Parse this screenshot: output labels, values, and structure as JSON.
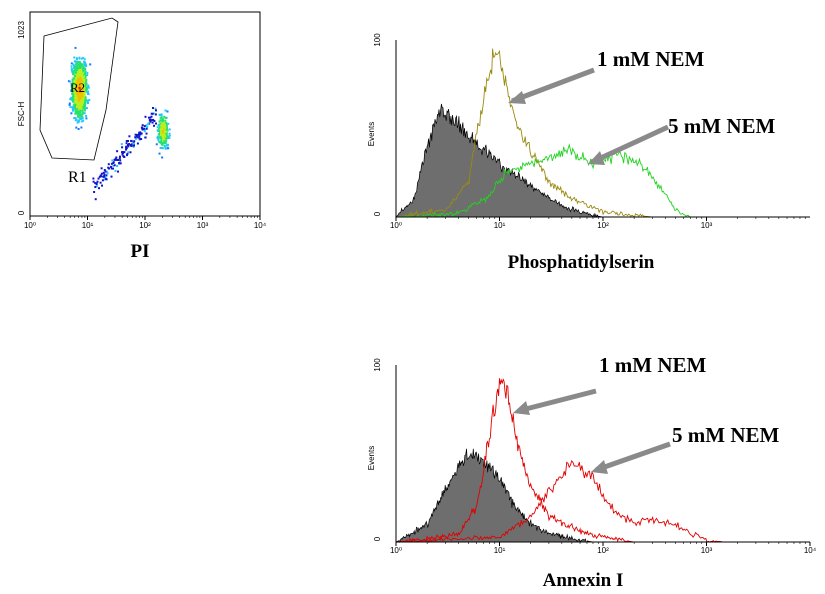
{
  "colors": {
    "gray_fill": "#6e6e6e",
    "olive": "#9a8a10",
    "green": "#22d322",
    "red": "#e10000",
    "arrow": "#8a8a8a"
  },
  "chart_data": [
    {
      "type": "scatter",
      "panel": "dot-plot",
      "x_tick_labels": [
        "10⁰",
        "10¹",
        "10²",
        "10³",
        "10⁴"
      ],
      "y_tick_labels": [
        "0",
        "1023"
      ],
      "xlabel": "PI",
      "ylabel": "FSC-H",
      "x_scale": "log",
      "xlim": [
        1,
        10000
      ],
      "ylim": [
        0,
        1023
      ],
      "gate_labels": [
        "R1",
        "R2"
      ],
      "clusters": [
        {
          "x_center": 7,
          "y_center": 640,
          "note": "dense live-cell population inside gate R1"
        },
        {
          "x_center": 200,
          "y_center": 430,
          "note": "PI-positive population"
        },
        {
          "x_from": 15,
          "x_to": 100,
          "y_from": 150,
          "y_to": 380,
          "note": "sparse connecting events"
        }
      ]
    },
    {
      "type": "area",
      "panel": "histogram-phosphatidylserin",
      "x_tick_labels": [
        "10⁰",
        "10¹",
        "10²",
        "10³"
      ],
      "y_tick_labels": [
        "0",
        "100"
      ],
      "xlabel": "Phosphatidylserin",
      "ylabel": "Events",
      "x_scale": "log",
      "xlim": [
        1,
        10000
      ],
      "ylim": [
        0,
        100
      ],
      "series": [
        {
          "name": "",
          "color_key": "gray_fill",
          "filled": true,
          "x": [
            1,
            1.5,
            2,
            2.6,
            3,
            4,
            6,
            10,
            20,
            40,
            80,
            100
          ],
          "y": [
            0,
            10,
            40,
            60,
            58,
            52,
            42,
            30,
            18,
            6,
            1,
            0
          ]
        },
        {
          "name": "1 mM NEM",
          "color_key": "olive",
          "filled": false,
          "x": [
            1,
            3,
            5,
            7,
            9,
            10,
            12,
            15,
            20,
            30,
            50,
            100,
            200,
            300
          ],
          "y": [
            0,
            4,
            20,
            68,
            92,
            90,
            70,
            50,
            38,
            20,
            10,
            3,
            1,
            0
          ]
        },
        {
          "name": "5 mM NEM",
          "color_key": "green",
          "filled": false,
          "x": [
            1,
            4,
            8,
            10,
            14,
            20,
            30,
            50,
            80,
            100,
            150,
            250,
            350,
            500,
            700
          ],
          "y": [
            0,
            2,
            12,
            22,
            28,
            30,
            34,
            38,
            30,
            32,
            34,
            28,
            18,
            4,
            0
          ]
        }
      ],
      "annotations": [
        "1 mM NEM",
        "5 mM NEM"
      ]
    },
    {
      "type": "area",
      "panel": "histogram-annexin",
      "x_tick_labels": [
        "10⁰",
        "10¹",
        "10²",
        "10³",
        "10⁴"
      ],
      "y_tick_labels": [
        "0",
        "100"
      ],
      "xlabel": "Annexin I",
      "ylabel": "Events",
      "x_scale": "log",
      "xlim": [
        1,
        10000
      ],
      "ylim": [
        0,
        100
      ],
      "series": [
        {
          "name": "",
          "color_key": "gray_fill",
          "filled": true,
          "x": [
            1,
            2,
            3,
            4,
            5,
            6,
            8,
            10,
            15,
            20,
            30,
            50,
            80
          ],
          "y": [
            0,
            10,
            30,
            42,
            50,
            48,
            42,
            35,
            18,
            10,
            5,
            2,
            0
          ]
        },
        {
          "name": "1 mM NEM",
          "color_key": "red",
          "filled": false,
          "x": [
            1,
            4,
            6,
            8,
            10,
            12,
            15,
            20,
            30,
            50,
            80,
            120,
            200
          ],
          "y": [
            0,
            4,
            20,
            60,
            92,
            85,
            55,
            32,
            15,
            8,
            4,
            2,
            0
          ]
        },
        {
          "name": "5 mM NEM",
          "color_key": "red",
          "filled": false,
          "x": [
            1,
            10,
            20,
            30,
            40,
            50,
            60,
            80,
            100,
            150,
            200,
            300,
            500,
            700,
            1000,
            1500
          ],
          "y": [
            0,
            3,
            14,
            28,
            38,
            44,
            42,
            36,
            25,
            14,
            11,
            12,
            10,
            5,
            1,
            0
          ]
        }
      ],
      "annotations": [
        "1 mM NEM",
        "5 mM NEM"
      ]
    }
  ]
}
